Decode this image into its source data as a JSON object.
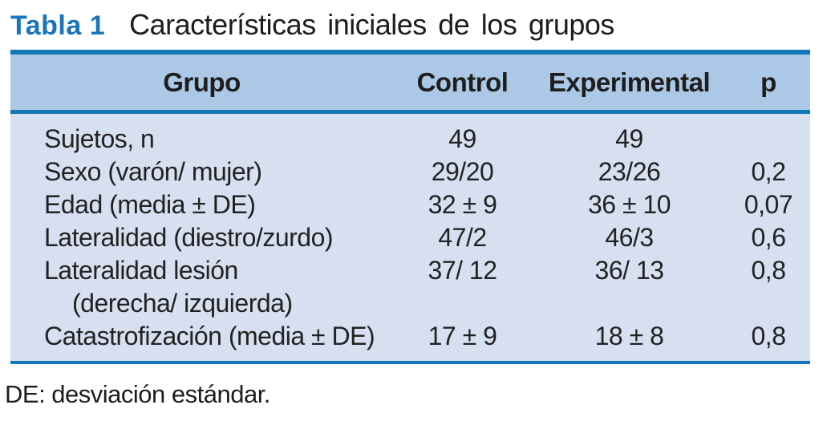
{
  "title": {
    "label": "Tabla 1",
    "text": "Características iniciales de los grupos"
  },
  "table": {
    "columns": [
      "Grupo",
      "Control",
      "Experimental",
      "p"
    ],
    "rows": [
      {
        "label": "Sujetos, n",
        "label2": "",
        "control": "49",
        "experimental": "49",
        "p": ""
      },
      {
        "label": "Sexo (varón/ mujer)",
        "label2": "",
        "control": "29/20",
        "experimental": "23/26",
        "p": "0,2"
      },
      {
        "label": "Edad (media ± DE)",
        "label2": "",
        "control": "32 ± 9",
        "experimental": "36 ± 10",
        "p": "0,07"
      },
      {
        "label": "Lateralidad (diestro/zurdo)",
        "label2": "",
        "control": "47/2",
        "experimental": "46/3",
        "p": "0,6"
      },
      {
        "label": "Lateralidad lesión",
        "label2": "(derecha/ izquierda)",
        "control": "37/ 12",
        "experimental": "36/ 13",
        "p": "0,8"
      },
      {
        "label": "Catastrofización (media ± DE)",
        "label2": "",
        "control": "17 ± 9",
        "experimental": "18 ± 8",
        "p": "0,8"
      }
    ]
  },
  "footnote": "DE: desviación estándar.",
  "colors": {
    "accent_rule": "#1478b8",
    "header_background": "#abc9e6",
    "body_background": "#d7e0f0",
    "title_label_blue": "#1b75bb",
    "text": "#1d1d1d"
  }
}
